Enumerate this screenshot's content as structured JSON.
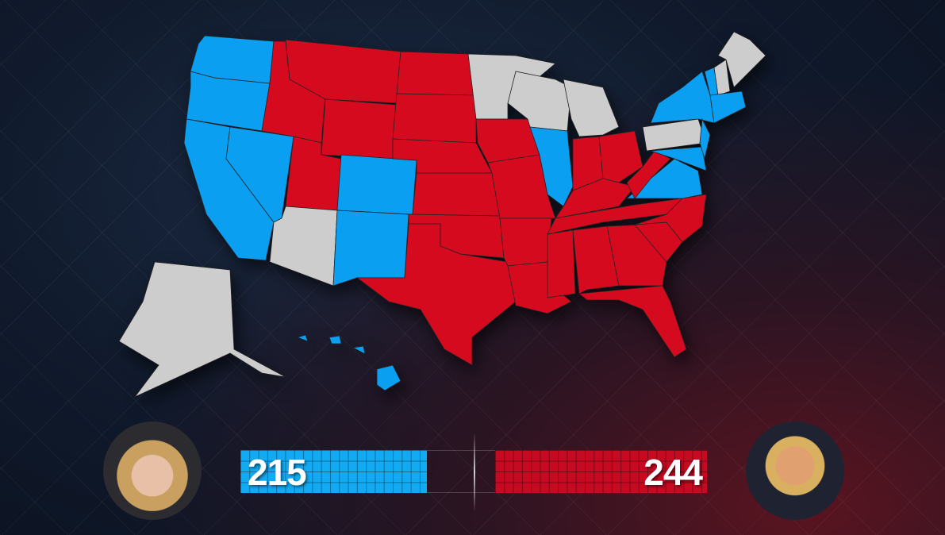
{
  "colors": {
    "D": "#0a9ff0",
    "R": "#d60a1f",
    "U": "#cdcdcd",
    "dem_bar": "#12aaf2",
    "rep_bar": "#c50a22"
  },
  "states": {
    "WA": "D",
    "OR": "D",
    "CA": "D",
    "NV": "D",
    "ID": "R",
    "MT": "R",
    "WY": "R",
    "UT": "R",
    "CO": "D",
    "AZ": "U",
    "NM": "D",
    "ND": "R",
    "SD": "R",
    "NE": "R",
    "KS": "R",
    "OK": "R",
    "TX": "R",
    "MN": "U",
    "IA": "R",
    "MO": "R",
    "AR": "R",
    "LA": "R",
    "WI": "U",
    "IL": "D",
    "MI": "U",
    "IN": "R",
    "OH": "R",
    "KY": "R",
    "TN": "R",
    "MS": "R",
    "AL": "R",
    "GA": "R",
    "FL": "R",
    "SC": "R",
    "NC": "R",
    "VA": "D",
    "WV": "R",
    "PA": "U",
    "NY": "D",
    "MD": "D",
    "NJ": "D",
    "VT": "D",
    "NH": "U",
    "ME": "U",
    "MA": "D",
    "AK": "U",
    "HI": "D"
  },
  "totals": {
    "democrat": {
      "votes": "215",
      "value": 215
    },
    "republican": {
      "votes": "244",
      "value": 244
    },
    "needed": 270
  }
}
